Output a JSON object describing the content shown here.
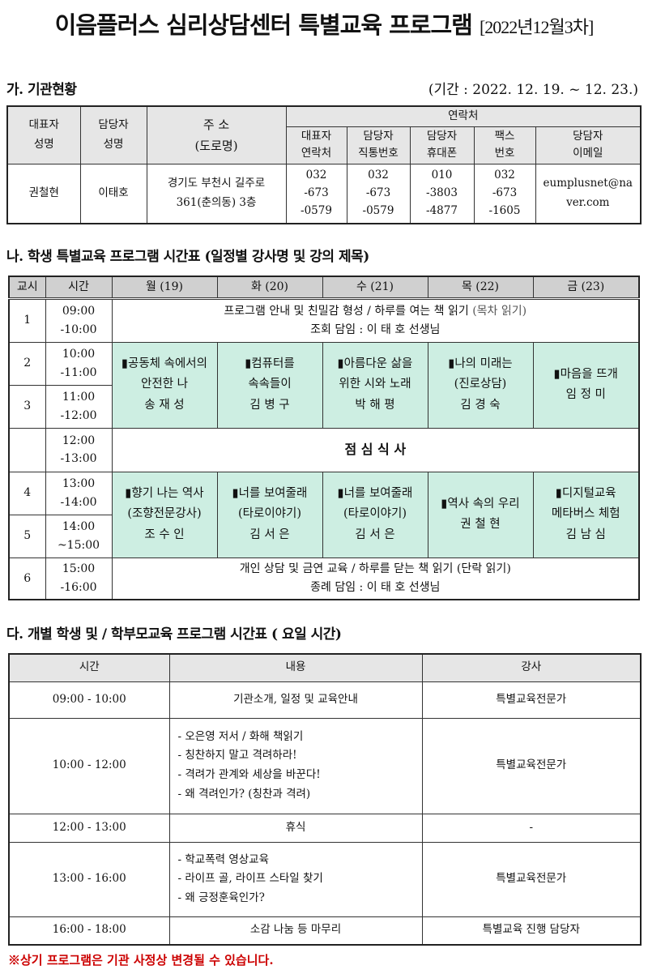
{
  "title": {
    "main": "이음플러스 심리상담센터 특별교육 프로그램",
    "sub": "[2022년12월3차]"
  },
  "section_a": {
    "heading": "가. 기관현황",
    "period": "(기간 : 2022. 12. 19. ~ 12. 23.)",
    "headers": {
      "rep_name": [
        "대표자",
        "성명"
      ],
      "mgr_name": [
        "담당자",
        "성명"
      ],
      "address": [
        "주 소",
        "(도로명)"
      ],
      "contact": "연락처",
      "rep_phone": [
        "대표자",
        "연락처"
      ],
      "mgr_direct": [
        "담당자",
        "직통번호"
      ],
      "mgr_mobile": [
        "담당자",
        "휴대폰"
      ],
      "fax": [
        "팩스",
        "번호"
      ],
      "mgr_email": [
        "당담자",
        "이메일"
      ]
    },
    "row": {
      "rep_name": "권철현",
      "mgr_name": "이태호",
      "address": [
        "경기도 부천시 길주로",
        "361(춘의동) 3층"
      ],
      "rep_phone": [
        "032",
        "-673",
        "-0579"
      ],
      "mgr_direct": [
        "032",
        "-673",
        "-0579"
      ],
      "mgr_mobile": [
        "010",
        "-3803",
        "-4877"
      ],
      "fax": [
        "032",
        "-673",
        "-1605"
      ],
      "mgr_email": [
        "eumplusnet@na",
        "ver.com"
      ]
    }
  },
  "section_b": {
    "heading": "나. 학생 특별교육 프로그램 시간표 (일정별 강사명 및 강의 제목)",
    "headers": [
      "교시",
      "시간",
      "월 (19)",
      "화 (20)",
      "수 (21)",
      "목 (22)",
      "금 (23)"
    ],
    "rows": [
      {
        "period": "1",
        "time": [
          "09:00",
          "-10:00"
        ],
        "text": [
          "프로그램 안내 및 친밀감 형성 / 하루를 여는 책 읽기",
          "(목차 읽기)",
          "조회 담임 : 이 태 호 선생님"
        ]
      },
      {
        "period": "2",
        "time": [
          "10:00",
          "-11:00"
        ]
      },
      {
        "period": "3",
        "time": [
          "11:00",
          "-12:00"
        ]
      },
      {
        "period": "",
        "time": [
          "12:00",
          "-13:00"
        ],
        "text": [
          "점 심 식 사"
        ]
      },
      {
        "period": "4",
        "time": [
          "13:00",
          "-14:00"
        ]
      },
      {
        "period": "5",
        "time": [
          "14:00",
          "~15:00"
        ]
      },
      {
        "period": "6",
        "time": [
          "15:00",
          "-16:00"
        ],
        "text": [
          "개인 상담 및 금연 교육 / 하루를 닫는 책 읽기 (단락 읽기)",
          "종례 담임 : 이 태 호 선생님"
        ]
      }
    ],
    "morning": [
      [
        "▮공동체 속에서의",
        "안전한 나",
        "송 재 성"
      ],
      [
        "▮컴퓨터를",
        "속속들이",
        "김 병 구"
      ],
      [
        "▮아름다운 삶을",
        "위한 시와 노래",
        "박 해 평"
      ],
      [
        "▮나의 미래는",
        "(진로상담)",
        "김 경 숙"
      ],
      [
        "▮마음을 뜨개",
        "임 정 미"
      ]
    ],
    "afternoon": [
      [
        "▮향기 나는 역사",
        "(조향전문강사)",
        "조 수 인"
      ],
      [
        "▮너를 보여줄래",
        "(타로이야기)",
        "김 서 은"
      ],
      [
        "▮너를 보여줄래",
        "(타로이야기)",
        "김 서 은"
      ],
      [
        "▮역사 속의 우리",
        "권 철 현"
      ],
      [
        "▮디지털교육",
        "메타버스 체험",
        "김 남 심"
      ]
    ]
  },
  "section_c": {
    "heading": "다. 개별 학생 및 / 학부모교육 프로그램 시간표 ( 요일 시간)",
    "headers": [
      "시간",
      "내용",
      "강사"
    ],
    "rows": [
      {
        "time": "09:00 - 10:00",
        "content": [
          "기관소개, 일정 및 교육안내"
        ],
        "lecturer": "특별교육전문가"
      },
      {
        "time": "10:00 - 12:00",
        "content": [
          "- 오은영 저서 / 화해 책읽기",
          "- 칭찬하지 말고 격려하라!",
          "- 격려가 관계와 세상을 바꾼다!",
          "- 왜 격려인가? (칭찬과 격려)"
        ],
        "lecturer": "특별교육전문가"
      },
      {
        "time": "12:00 - 13:00",
        "content": [
          "휴식"
        ],
        "lecturer": "-"
      },
      {
        "time": "13:00 - 16:00",
        "content": [
          "- 학교폭력 영상교육",
          "- 라이프 골, 라이프 스타일 찾기",
          "- 왜 긍정훈육인가?"
        ],
        "lecturer": "특별교육전문가"
      },
      {
        "time": "16:00 - 18:00",
        "content": [
          "소감 나눔 등 마무리"
        ],
        "lecturer": "특별교육 진행 담당자"
      }
    ]
  },
  "footnote": "※상기 프로그램은 기관 사정상 변경될 수 있습니다.",
  "colors": {
    "lecture_cell": "#cdeee2",
    "header_gray": "#d0d0d0",
    "footnote": "#cc0000"
  }
}
